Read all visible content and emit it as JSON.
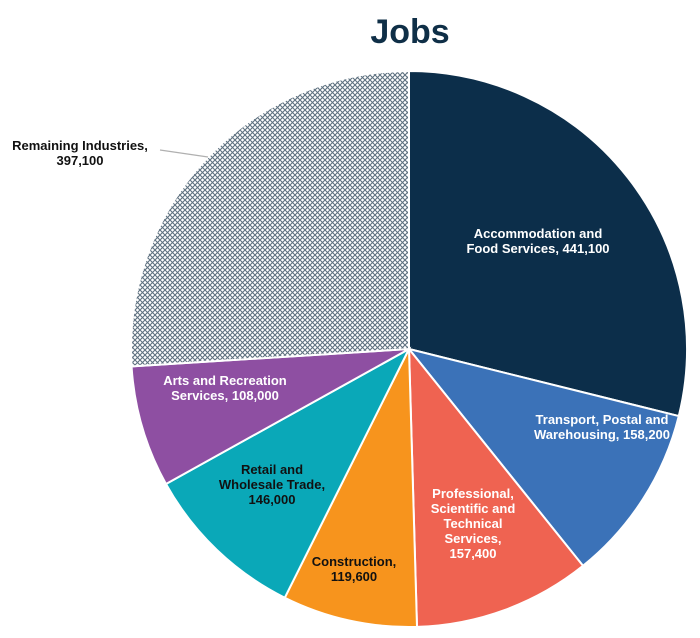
{
  "chart_data": {
    "type": "pie",
    "title": "Jobs",
    "slices": [
      {
        "label": "Accommodation and Food Services, 441,100",
        "lines": [
          "Accommodation and",
          "Food Services, 441,100"
        ],
        "category": "Accommodation and Food Services",
        "value": 441100,
        "color": "#0c2e4a",
        "label_color": "#ffffff",
        "pattern": false
      },
      {
        "label": "Transport, Postal and Warehousing, 158,200",
        "lines": [
          "Transport, Postal and",
          "Warehousing, 158,200"
        ],
        "category": "Transport, Postal and Warehousing",
        "value": 158200,
        "color": "#3b72b8",
        "label_color": "#ffffff",
        "pattern": false
      },
      {
        "label": "Professional, Scientific and Technical Services, 157,400",
        "lines": [
          "Professional,",
          "Scientific and",
          "Technical",
          "Services,",
          "157,400"
        ],
        "category": "Professional, Scientific and Technical Services",
        "value": 157400,
        "color": "#ef6351",
        "label_color": "#ffffff",
        "pattern": false
      },
      {
        "label": "Construction, 119,600",
        "lines": [
          "Construction,",
          "119,600"
        ],
        "category": "Construction",
        "value": 119600,
        "color": "#f7941d",
        "label_color": "#111111",
        "pattern": false
      },
      {
        "label": "Retail and Wholesale Trade, 146,000",
        "lines": [
          "Retail and",
          "Wholesale Trade,",
          "146,000"
        ],
        "category": "Retail and Wholesale Trade",
        "value": 146000,
        "color": "#0aa8b8",
        "label_color": "#111111",
        "pattern": false
      },
      {
        "label": "Arts and Recreation Services, 108,000",
        "lines": [
          "Arts and Recreation",
          "Services, 108,000"
        ],
        "category": "Arts and Recreation Services",
        "value": 108000,
        "color": "#8e4fa2",
        "label_color": "#ffffff",
        "pattern": false
      },
      {
        "label": "Remaining Industries, 397,100",
        "lines": [
          "Remaining Industries,",
          "397,100"
        ],
        "category": "Remaining Industries",
        "value": 397100,
        "color": "#6b7f8c",
        "label_color": "#111111",
        "pattern": true
      }
    ]
  }
}
